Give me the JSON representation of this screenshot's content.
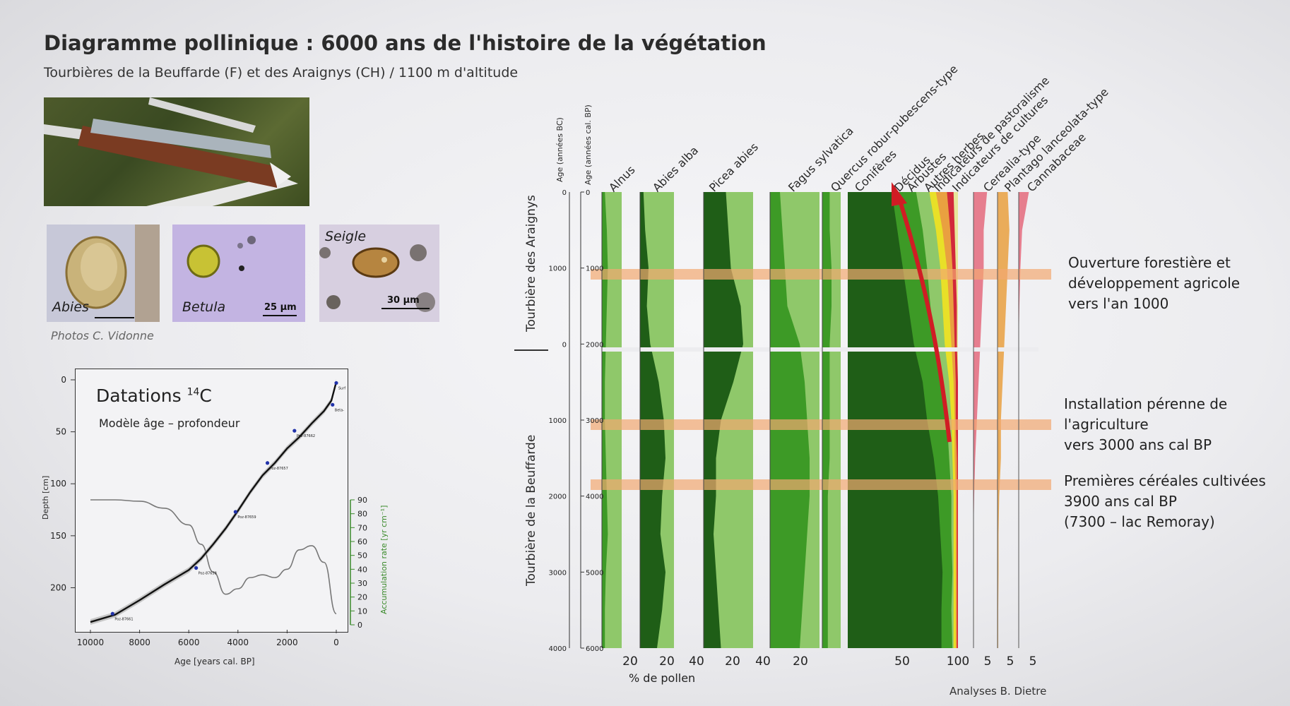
{
  "title": "Diagramme pollinique : 6000 ans de l'histoire de la végétation",
  "subtitle": "Tourbières de la Beuffarde (F) et des Araignys (CH) / 1100 m d'altitude",
  "photos": [
    {
      "label": "Abies",
      "scale": "25 µm"
    },
    {
      "label": "Betula",
      "scale": "25 µm"
    },
    {
      "label": "Seigle",
      "scale": "30 µm"
    }
  ],
  "photo_credit": "Photos C. Vidonne",
  "colors": {
    "dark_green": "#1f5e17",
    "mid_green": "#3d9a26",
    "light_green": "#8fc86a",
    "pale_green": "#b4d98f",
    "yellow": "#e8e028",
    "orange": "#e9a040",
    "red": "#d2283a",
    "pink": "#e46a7c",
    "band": "#f2a870"
  },
  "chart_data": [
    {
      "type": "line",
      "title": "Datations 14C",
      "title_main": "Datations ",
      "title_sup": "14",
      "title_end": "C",
      "subtitle": "Modèle âge – profondeur",
      "xlabel": "Age [years cal. BP]",
      "ylabel": "Depth [cm]",
      "y2label": "Accumulation rate [yr cm⁻¹]",
      "xlim": [
        10000,
        0
      ],
      "ylim": [
        0,
        235
      ],
      "y2lim": [
        0,
        90
      ],
      "xticks": [
        10000,
        8000,
        6000,
        4000,
        2000,
        0
      ],
      "yticks": [
        0,
        50,
        100,
        150,
        200
      ],
      "y2ticks": [
        0,
        10,
        20,
        30,
        40,
        50,
        60,
        70,
        80,
        90
      ],
      "series": [
        {
          "values_x": [
            10000,
            9000,
            8000,
            7000,
            6000,
            5500,
            5000,
            4500,
            4000,
            3500,
            3000,
            2500,
            2000,
            1500,
            1000,
            500,
            200,
            0
          ],
          "values_y": [
            233,
            226,
            212,
            197,
            183,
            172,
            158,
            143,
            126,
            108,
            92,
            80,
            66,
            55,
            42,
            30,
            20,
            2
          ]
        }
      ],
      "accumulation_rate": {
        "x": [
          10000,
          9000,
          8000,
          7000,
          6000,
          5500,
          5000,
          4500,
          4000,
          3500,
          3000,
          2500,
          2000,
          1500,
          1000,
          500,
          0
        ],
        "y": [
          90,
          90,
          89,
          84,
          72,
          58,
          38,
          22,
          26,
          34,
          36,
          34,
          40,
          54,
          57,
          45,
          8
        ]
      },
      "dated_samples": [
        {
          "age": 9100,
          "depth": 225,
          "code": "Poz-87661"
        },
        {
          "age": 5700,
          "depth": 181,
          "code": "Poz-87658"
        },
        {
          "age": 4100,
          "depth": 127,
          "code": "Poz-87659"
        },
        {
          "age": 2800,
          "depth": 80,
          "code": "Poz-87657"
        },
        {
          "age": 1700,
          "depth": 49,
          "code": "Poz-87662"
        },
        {
          "age": 150,
          "depth": 24,
          "code": "Beta-"
        },
        {
          "age": 0,
          "depth": 3,
          "code": "Surf"
        }
      ]
    },
    {
      "type": "area",
      "sites": [
        "Tourbière des Araignys",
        "Tourbière de la Beuffarde"
      ],
      "yaxis_bc_label": "Age (années BC)",
      "yaxis_bp_label": "Age (années cal. BP)",
      "bc_ticks_araignys": [
        0,
        1000,
        0
      ],
      "bc_ticks_beuffarde": [
        1000,
        2000,
        3000,
        4000
      ],
      "bp_ticks": [
        0,
        1000,
        2000,
        3000,
        4000,
        5000,
        6000
      ],
      "taxa": [
        "Alnus",
        "Abies alba",
        "Picea abies",
        "Fagus sylvatica",
        "Quercus robur-pubescens-type",
        "Conifères",
        "Décidus",
        "Arbustes",
        "Autres herbes",
        "Indicateurs de pastoralisme",
        "Indicateurs de cultures",
        "Cerealia-type",
        "Plantago lanceolata-type",
        "Cannabaceae"
      ],
      "xticks": [
        "20",
        "20",
        "40",
        "20",
        "40",
        "20",
        "50",
        "100",
        "5",
        "5",
        "5"
      ],
      "xlabel": "% de pollen",
      "age_cal_bp": [
        0,
        500,
        1000,
        1500,
        2000,
        2500,
        3000,
        3500,
        4000,
        4500,
        5000,
        5500,
        6000
      ],
      "curves": {
        "Alnus": [
          3,
          5,
          6,
          5,
          4,
          3,
          3,
          4,
          5,
          6,
          4,
          3,
          3
        ],
        "Abies alba": [
          4,
          6,
          10,
          8,
          12,
          22,
          28,
          30,
          26,
          24,
          30,
          26,
          20
        ],
        "Picea abies": [
          18,
          20,
          22,
          30,
          32,
          24,
          14,
          10,
          10,
          8,
          10,
          12,
          14
        ],
        "Fagus sylvatica": [
          8,
          10,
          12,
          14,
          24,
          28,
          30,
          32,
          32,
          30,
          28,
          26,
          24
        ],
        "Quercus robur-pubescens-type": [
          4,
          4,
          5,
          5,
          4,
          4,
          4,
          4,
          3,
          3,
          3,
          3,
          3
        ],
        "Conifères": [
          40,
          45,
          50,
          55,
          60,
          68,
          72,
          78,
          82,
          84,
          86,
          85,
          85
        ],
        "Décidus": [
          62,
          68,
          72,
          75,
          80,
          85,
          90,
          92,
          94,
          94,
          95,
          94,
          95
        ],
        "Arbustes": [
          74,
          80,
          84,
          86,
          88,
          92,
          94,
          95,
          96,
          96,
          96,
          96,
          96
        ],
        "Autres herbes": [
          80,
          86,
          90,
          92,
          94,
          96,
          97,
          97,
          98,
          98,
          98,
          98,
          98
        ],
        "Indicateurs de pastoralisme": [
          90,
          93,
          95,
          96,
          97,
          98,
          98,
          99,
          99,
          99,
          99,
          99,
          99
        ],
        "Indicateurs de cultures": [
          96,
          97,
          98,
          99,
          99,
          100,
          100,
          100,
          100,
          100,
          100,
          100,
          100
        ],
        "Cerealia-type": [
          4,
          3,
          3,
          2.5,
          2,
          1.5,
          1,
          0.5,
          0.2,
          0,
          0,
          0,
          0
        ],
        "Plantago lanceolata-type": [
          3,
          3.5,
          3,
          2.5,
          2,
          1.5,
          1,
          1,
          0.5,
          0.3,
          0.3,
          0.2,
          0.2
        ],
        "Cannabaceae": [
          3,
          1,
          0.5,
          0.2,
          0,
          0,
          0,
          0,
          0,
          0,
          0,
          0,
          0
        ]
      },
      "bands": [
        {
          "label_lines": [
            "Ouverture forestière et",
            "développement agricole",
            "vers l'an 1000"
          ]
        },
        {
          "label_lines": [
            "Installation pérenne de",
            "l'agriculture",
            "vers 3000 ans cal BP"
          ]
        },
        {
          "label_lines": [
            "Premières céréales cultivées",
            "3900 ans cal BP",
            "(7300 – lac Remoray)"
          ]
        }
      ],
      "credit": "Analyses B. Dietre"
    }
  ]
}
